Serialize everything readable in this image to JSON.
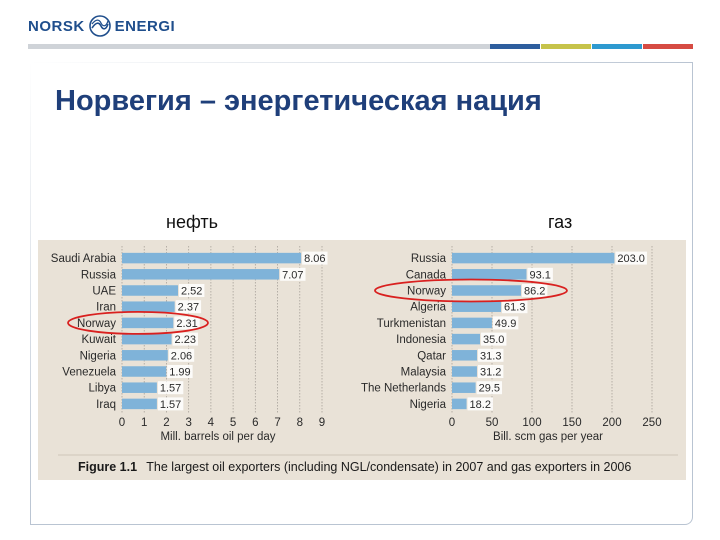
{
  "brand": {
    "left": "NORSK",
    "right": "ENERGI"
  },
  "header_colors": [
    "#2e5e9e",
    "#c6c34a",
    "#2e9ad0",
    "#d64b43"
  ],
  "slide_title": "Норвегия – энергетическая нация",
  "labels": {
    "oil": "нефть",
    "gas": "газ"
  },
  "highlight_color": "#d9201f",
  "chart_data": [
    {
      "type": "bar",
      "orientation": "horizontal",
      "categories": [
        "Saudi Arabia",
        "Russia",
        "UAE",
        "Iran",
        "Norway",
        "Kuwait",
        "Nigeria",
        "Venezuela",
        "Libya",
        "Iraq"
      ],
      "values": [
        8.06,
        7.07,
        2.52,
        2.37,
        2.31,
        2.23,
        2.06,
        1.99,
        1.57,
        1.57
      ],
      "value_labels": [
        "8.06",
        "7.07",
        "2.52",
        "2.37",
        "2.31",
        "2.23",
        "2.06",
        "1.99",
        "1.57",
        "1.57"
      ],
      "xlim": [
        0,
        9
      ],
      "xticks": [
        "0",
        "1",
        "2",
        "3",
        "4",
        "5",
        "6",
        "7",
        "8",
        "9"
      ],
      "xlabel": "Mill. barrels oil per day",
      "highlight": "Norway",
      "bar_color": "#7fb3d9"
    },
    {
      "type": "bar",
      "orientation": "horizontal",
      "categories": [
        "Russia",
        "Canada",
        "Norway",
        "Algeria",
        "Turkmenistan",
        "Indonesia",
        "Qatar",
        "Malaysia",
        "The Netherlands",
        "Nigeria"
      ],
      "values": [
        203.0,
        93.1,
        86.2,
        61.3,
        49.9,
        35.0,
        31.3,
        31.2,
        29.5,
        18.2
      ],
      "value_labels": [
        "203.0",
        "93.1",
        "86.2",
        "61.3",
        "49.9",
        "35.0",
        "31.3",
        "31.2",
        "29.5",
        "18.2"
      ],
      "xlim": [
        0,
        250
      ],
      "xticks": [
        "0",
        "50",
        "100",
        "150",
        "200",
        "250"
      ],
      "xlabel": "Bill. scm gas per year",
      "highlight": "Norway",
      "bar_color": "#7fb3d9"
    }
  ],
  "figure_caption": {
    "label": "Figure 1.1",
    "text": "The largest oil exporters (including NGL/condensate) in 2007 and gas exporters in 2006"
  }
}
